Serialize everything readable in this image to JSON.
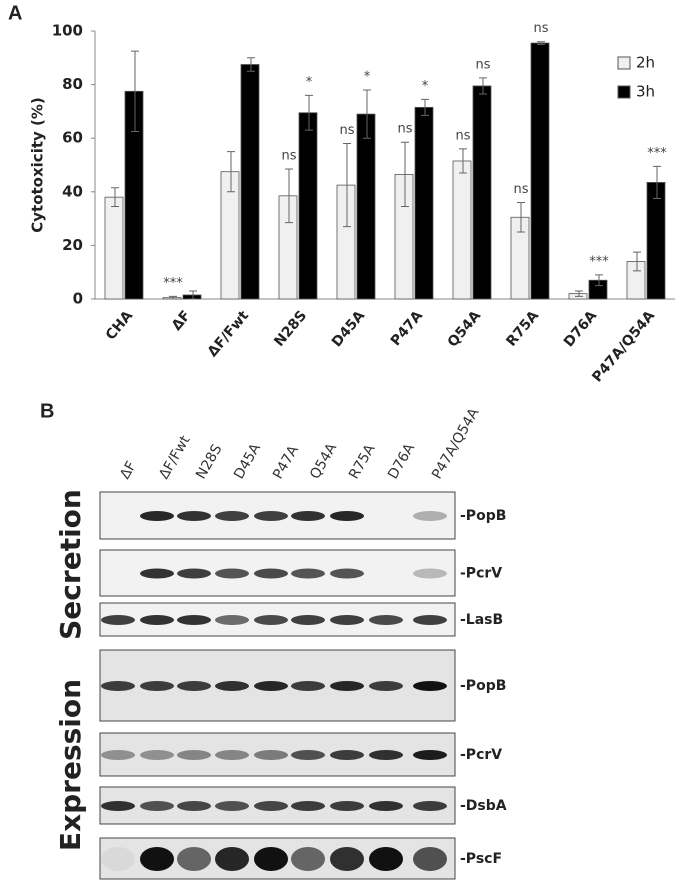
{
  "chart_data": {
    "type": "bar",
    "y_label": "Cytotoxicity (%)",
    "categories": [
      "CHA",
      "ΔF",
      "ΔF/Fwt",
      "N28S",
      "D45A",
      "P47A",
      "Q54A",
      "R75A",
      "D76A",
      "P47A/Q54A"
    ],
    "series": [
      {
        "name": "2h",
        "color": "#f0f0f0",
        "values": [
          38,
          0.5,
          47.5,
          38.5,
          42.5,
          46.5,
          51.5,
          30.5,
          2,
          14
        ],
        "errors": [
          3.5,
          0.5,
          7.5,
          10,
          15.5,
          12,
          4.5,
          5.5,
          1,
          3.5
        ],
        "labels": [
          null,
          "***",
          null,
          "ns",
          "ns",
          "ns",
          "ns",
          "ns",
          null,
          null
        ]
      },
      {
        "name": "3h",
        "color": "#000000",
        "values": [
          77.5,
          1.5,
          87.5,
          69.5,
          69,
          71.5,
          79.5,
          95.5,
          7,
          43.5
        ],
        "errors": [
          15,
          1.5,
          2.5,
          6.5,
          9,
          3,
          3,
          0.5,
          2,
          6
        ],
        "labels": [
          null,
          null,
          null,
          "*",
          "*",
          "*",
          "ns",
          "ns",
          "***",
          "***"
        ]
      }
    ],
    "ylim": [
      0,
      100
    ],
    "yticks": [
      0,
      20,
      40,
      60,
      80,
      100
    ],
    "grid": false,
    "legend": "upper right"
  },
  "figure": {
    "panel_a_label": "A",
    "panel_b_label": "B",
    "lanes": [
      "ΔF",
      "ΔF/Fwt",
      "N28S",
      "D45A",
      "P47A",
      "Q54A",
      "R75A",
      "D76A",
      "P47A/Q54A"
    ],
    "groups": [
      {
        "title": "Secretion",
        "rows": [
          "-PopB",
          "-PcrV",
          "-LasB"
        ]
      },
      {
        "title": "Expression",
        "rows": [
          "-PopB",
          "-PcrV",
          "-DsbA",
          "-PscF"
        ]
      }
    ]
  }
}
